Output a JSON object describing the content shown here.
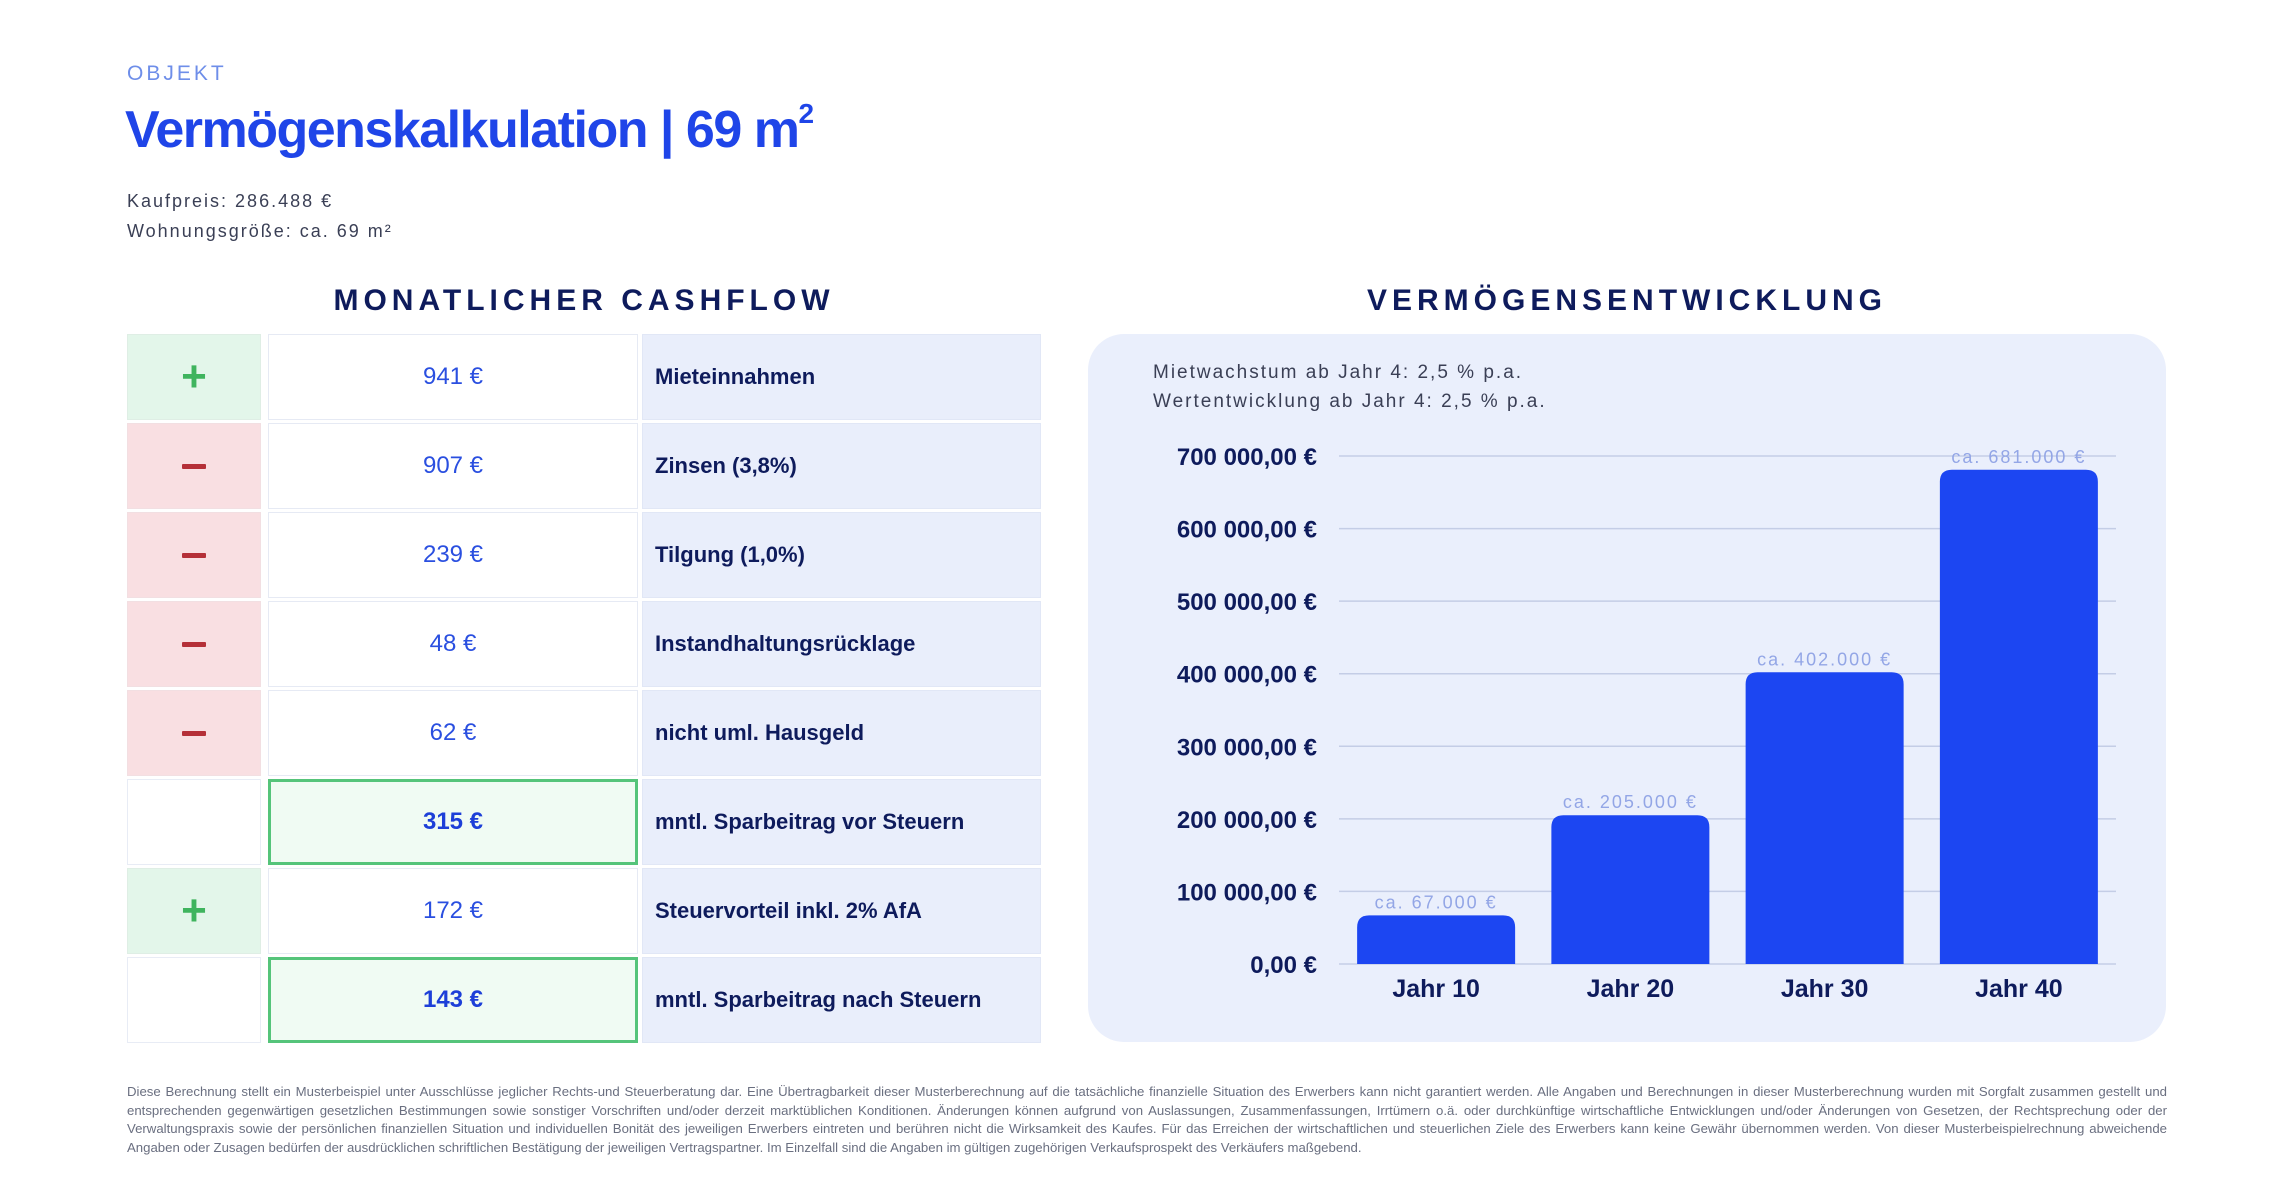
{
  "header": {
    "eyebrow": "OBJEKT",
    "title": "Vermögenskalkulation | 69 m",
    "title_sup": "2",
    "kaufpreis": "Kaufpreis: 286.488 €",
    "wohnungsgroesse": "Wohnungsgröße: ca. 69 m²"
  },
  "cashflow": {
    "title": "MONATLICHER CASHFLOW",
    "rows": [
      {
        "sign": "plus",
        "amount": "941 €",
        "label": "Mieteinnahmen",
        "highlight": false
      },
      {
        "sign": "minus",
        "amount": "907 €",
        "label": "Zinsen (3,8%)",
        "highlight": false
      },
      {
        "sign": "minus",
        "amount": "239 €",
        "label": "Tilgung (1,0%)",
        "highlight": false
      },
      {
        "sign": "minus",
        "amount": "48 €",
        "label": "Instandhaltungsrücklage",
        "highlight": false
      },
      {
        "sign": "minus",
        "amount": "62 €",
        "label": "nicht uml. Hausgeld",
        "highlight": false
      },
      {
        "sign": "none",
        "amount": "315 €",
        "label": "mntl. Sparbeitrag vor Steuern",
        "highlight": true
      },
      {
        "sign": "plus",
        "amount": "172 €",
        "label": "Steuervorteil inkl. 2% AfA",
        "highlight": false
      },
      {
        "sign": "none",
        "amount": "143 €",
        "label": "mntl. Sparbeitrag nach Steuern",
        "highlight": true
      }
    ]
  },
  "vermoegen": {
    "title": "VERMÖGENSENTWICKLUNG",
    "notes": [
      "Mietwachstum ab Jahr 4: 2,5 % p.a.",
      "Wertentwicklung ab Jahr 4: 2,5 % p.a."
    ]
  },
  "chart_data": {
    "type": "bar",
    "categories": [
      "Jahr 10",
      "Jahr 20",
      "Jahr 30",
      "Jahr 40"
    ],
    "values": [
      67000,
      205000,
      402000,
      681000
    ],
    "data_labels": [
      "ca. 67.000 €",
      "ca. 205.000 €",
      "ca. 402.000 €",
      "ca. 681.000 €"
    ],
    "ylim": [
      0,
      700000
    ],
    "yticks": [
      0,
      100000,
      200000,
      300000,
      400000,
      500000,
      600000,
      700000
    ],
    "ytick_labels": [
      "0,00 €",
      "100 000,00 €",
      "200 000,00 €",
      "300 000,00 €",
      "400 000,00 €",
      "500 000,00 €",
      "600 000,00 €",
      "700 000,00 €"
    ],
    "grid": true,
    "bar_color": "#1c46f2",
    "label_color": "#93a6e6",
    "title": "",
    "xlabel": "",
    "ylabel": ""
  },
  "disclaimer": "Diese Berechnung stellt ein Musterbeispiel unter Ausschlüsse jeglicher Rechts-und Steuerberatung dar. Eine Übertragbarkeit dieser Musterberechnung auf die tatsächliche finanzielle Situation des Erwerbers kann nicht garantiert werden. Alle Angaben und Berechnungen in dieser Musterberechnung wurden mit Sorgfalt zusammen gestellt und entsprechenden gegenwärtigen gesetzlichen Bestimmungen sowie sonstiger Vorschriften und/oder derzeit marktüblichen Konditionen. Änderungen können aufgrund von Auslassungen, Zusammenfassungen, Irrtümern o.ä. oder durchkünftige wirtschaftliche Entwicklungen und/oder Änderungen von Gesetzen, der Rechtsprechung oder der Verwaltungspraxis sowie der persönlichen finanziellen Situation und individuellen Bonität des jeweiligen Erwerbers eintreten und berühren nicht die Wirksamkeit des Kaufes. Für das Erreichen der wirtschaftlichen und steuerlichen Ziele des Erwerbers kann keine Gewähr übernommen werden. Von dieser Musterbeispielrechnung abweichende Angaben oder Zusagen bedürfen der ausdrücklichen schriftlichen Bestätigung der jeweiligen Vertragspartner. Im Einzelfall sind die Angaben im gültigen zugehörigen Verkaufsprospekt des Verkäufers maßgebend."
}
